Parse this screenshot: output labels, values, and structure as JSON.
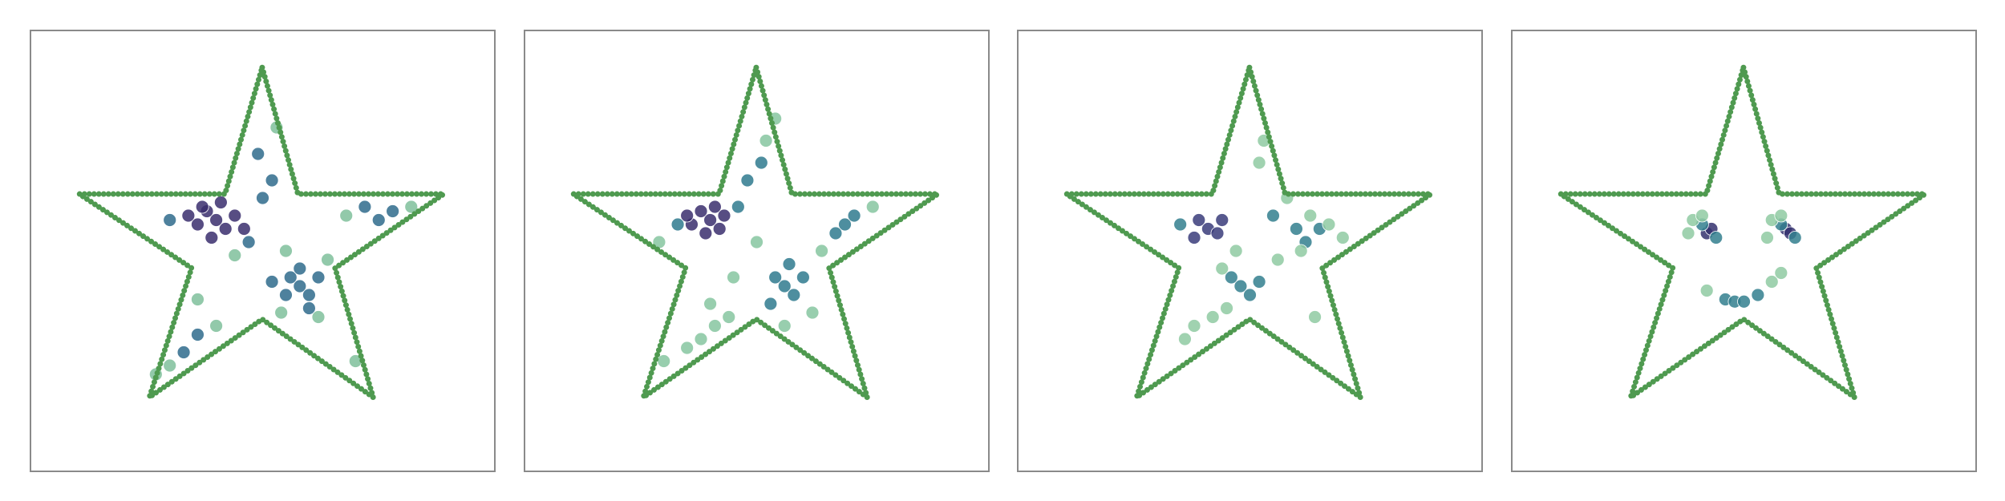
{
  "chart_data": [
    {
      "type": "scatter",
      "xlim": [
        0,
        1
      ],
      "ylim": [
        0,
        1
      ],
      "outline": {
        "color": "#4f9a50",
        "x": [
          0.499,
          0.576,
          0.89,
          0.656,
          0.738,
          0.499,
          0.256,
          0.347,
          0.105,
          0.419,
          0.499
        ],
        "y": [
          0.916,
          0.629,
          0.629,
          0.461,
          0.168,
          0.345,
          0.168,
          0.461,
          0.629,
          0.629,
          0.916
        ]
      },
      "series": [
        {
          "color": "#3a2e6d",
          "x": [
            0.4,
            0.38,
            0.42,
            0.36,
            0.44,
            0.39,
            0.41,
            0.34,
            0.46,
            0.37
          ],
          "y": [
            0.57,
            0.59,
            0.55,
            0.56,
            0.58,
            0.53,
            0.61,
            0.58,
            0.55,
            0.6
          ]
        },
        {
          "color": "#2f6b8c",
          "x": [
            0.58,
            0.56,
            0.6,
            0.55,
            0.62,
            0.58,
            0.52,
            0.6,
            0.49,
            0.52,
            0.5,
            0.47,
            0.3,
            0.33,
            0.36,
            0.72,
            0.78,
            0.75
          ],
          "y": [
            0.42,
            0.44,
            0.4,
            0.4,
            0.44,
            0.46,
            0.43,
            0.37,
            0.72,
            0.66,
            0.62,
            0.52,
            0.57,
            0.27,
            0.31,
            0.6,
            0.59,
            0.57
          ]
        },
        {
          "color": "#7fbf9b",
          "x": [
            0.53,
            0.55,
            0.64,
            0.68,
            0.82,
            0.3,
            0.4,
            0.27,
            0.36,
            0.62,
            0.54,
            0.44,
            0.7
          ],
          "y": [
            0.78,
            0.5,
            0.48,
            0.58,
            0.6,
            0.24,
            0.33,
            0.22,
            0.39,
            0.35,
            0.36,
            0.49,
            0.25
          ]
        }
      ]
    },
    {
      "type": "scatter",
      "xlim": [
        0,
        1
      ],
      "ylim": [
        0,
        1
      ],
      "outline": {
        "color": "#4f9a50",
        "x": [
          0.499,
          0.576,
          0.89,
          0.656,
          0.738,
          0.499,
          0.256,
          0.347,
          0.105,
          0.419,
          0.499
        ],
        "y": [
          0.916,
          0.629,
          0.629,
          0.461,
          0.168,
          0.345,
          0.168,
          0.461,
          0.629,
          0.629,
          0.916
        ]
      },
      "series": [
        {
          "color": "#3a2e6d",
          "x": [
            0.4,
            0.38,
            0.42,
            0.36,
            0.43,
            0.39,
            0.41,
            0.35
          ],
          "y": [
            0.57,
            0.59,
            0.55,
            0.56,
            0.58,
            0.54,
            0.6,
            0.58
          ]
        },
        {
          "color": "#2f7a8e",
          "x": [
            0.56,
            0.54,
            0.58,
            0.53,
            0.6,
            0.57,
            0.69,
            0.71,
            0.67,
            0.46,
            0.33,
            0.48,
            0.51
          ],
          "y": [
            0.42,
            0.44,
            0.4,
            0.38,
            0.44,
            0.47,
            0.56,
            0.58,
            0.54,
            0.6,
            0.56,
            0.66,
            0.7
          ]
        },
        {
          "color": "#86c6a0",
          "x": [
            0.41,
            0.38,
            0.44,
            0.35,
            0.52,
            0.54,
            0.5,
            0.64,
            0.75,
            0.3,
            0.62,
            0.45,
            0.4,
            0.56,
            0.29
          ],
          "y": [
            0.33,
            0.3,
            0.35,
            0.28,
            0.75,
            0.8,
            0.52,
            0.5,
            0.6,
            0.25,
            0.36,
            0.44,
            0.38,
            0.33,
            0.52
          ]
        }
      ]
    },
    {
      "type": "scatter",
      "xlim": [
        0,
        1
      ],
      "ylim": [
        0,
        1
      ],
      "outline": {
        "color": "#4f9a50",
        "x": [
          0.499,
          0.576,
          0.89,
          0.656,
          0.738,
          0.499,
          0.256,
          0.347,
          0.105,
          0.419,
          0.499
        ],
        "y": [
          0.916,
          0.629,
          0.629,
          0.461,
          0.168,
          0.345,
          0.168,
          0.461,
          0.629,
          0.629,
          0.916
        ]
      },
      "series": [
        {
          "color": "#3a3c7a",
          "x": [
            0.41,
            0.39,
            0.43,
            0.38,
            0.44
          ],
          "y": [
            0.55,
            0.57,
            0.54,
            0.53,
            0.57
          ]
        },
        {
          "color": "#327f8e",
          "x": [
            0.48,
            0.5,
            0.46,
            0.52,
            0.6,
            0.65,
            0.62,
            0.35,
            0.55
          ],
          "y": [
            0.42,
            0.4,
            0.44,
            0.43,
            0.55,
            0.55,
            0.52,
            0.56,
            0.58
          ]
        },
        {
          "color": "#8fcaa2",
          "x": [
            0.63,
            0.67,
            0.58,
            0.7,
            0.61,
            0.42,
            0.38,
            0.45,
            0.36,
            0.52,
            0.53,
            0.56,
            0.47,
            0.44,
            0.64
          ],
          "y": [
            0.58,
            0.56,
            0.62,
            0.53,
            0.5,
            0.35,
            0.33,
            0.37,
            0.3,
            0.7,
            0.75,
            0.48,
            0.5,
            0.46,
            0.35
          ]
        }
      ]
    },
    {
      "type": "scatter",
      "xlim": [
        0,
        1
      ],
      "ylim": [
        0,
        1
      ],
      "outline": {
        "color": "#4f9a50",
        "x": [
          0.499,
          0.576,
          0.89,
          0.656,
          0.738,
          0.499,
          0.256,
          0.347,
          0.105,
          0.419,
          0.499
        ],
        "y": [
          0.916,
          0.629,
          0.629,
          0.461,
          0.168,
          0.345,
          0.168,
          0.461,
          0.629,
          0.629,
          0.916
        ]
      },
      "series": [
        {
          "color": "#34316f",
          "x": [
            0.42,
            0.43,
            0.59,
            0.6
          ],
          "y": [
            0.54,
            0.55,
            0.55,
            0.54
          ]
        },
        {
          "color": "#327f8e",
          "x": [
            0.41,
            0.44,
            0.58,
            0.61,
            0.46,
            0.48,
            0.5,
            0.53
          ],
          "y": [
            0.56,
            0.53,
            0.56,
            0.53,
            0.39,
            0.385,
            0.385,
            0.4
          ]
        },
        {
          "color": "#8fcaa2",
          "x": [
            0.38,
            0.39,
            0.41,
            0.55,
            0.56,
            0.58,
            0.42,
            0.56,
            0.58
          ],
          "y": [
            0.54,
            0.57,
            0.58,
            0.53,
            0.57,
            0.58,
            0.41,
            0.43,
            0.45
          ]
        }
      ]
    }
  ]
}
